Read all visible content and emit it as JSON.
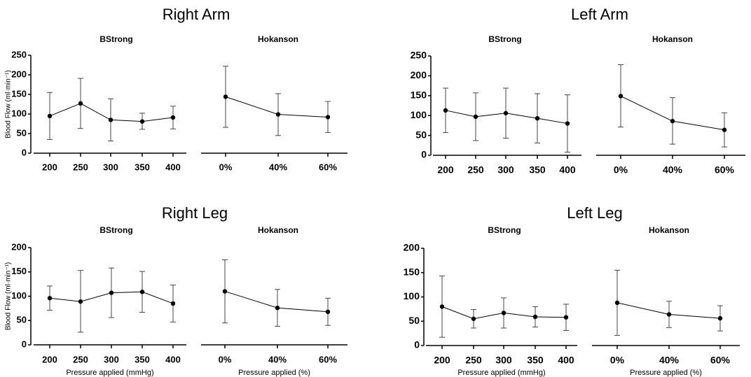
{
  "chart_data": [
    {
      "type": "line",
      "title": "Right Arm",
      "ylabel": "Blood Flow (ml·min⁻¹)",
      "ylim": [
        0,
        250
      ],
      "yticks": [
        0,
        50,
        100,
        150,
        200,
        250
      ],
      "panels": [
        {
          "subtitle": "BStrong",
          "xlabel": "",
          "categories": [
            "200",
            "250",
            "300",
            "350",
            "400"
          ],
          "values": [
            95,
            127,
            85,
            81,
            91
          ],
          "error_low": [
            35,
            63,
            31,
            61,
            62
          ],
          "error_high": [
            155,
            191,
            139,
            102,
            120
          ]
        },
        {
          "subtitle": "Hokanson",
          "xlabel": "",
          "categories": [
            "0%",
            "40%",
            "60%"
          ],
          "values": [
            144,
            99,
            92
          ],
          "error_low": [
            66,
            45,
            53
          ],
          "error_high": [
            222,
            152,
            132
          ]
        }
      ]
    },
    {
      "type": "line",
      "title": "Left Arm",
      "ylabel": "",
      "ylim": [
        0,
        250
      ],
      "yticks": [
        0,
        50,
        100,
        150,
        200,
        250
      ],
      "panels": [
        {
          "subtitle": "BStrong",
          "xlabel": "",
          "categories": [
            "200",
            "250",
            "300",
            "350",
            "400"
          ],
          "values": [
            113,
            97,
            106,
            93,
            80
          ],
          "error_low": [
            57,
            37,
            43,
            31,
            8
          ],
          "error_high": [
            169,
            157,
            169,
            155,
            152
          ]
        },
        {
          "subtitle": "Hokanson",
          "xlabel": "",
          "categories": [
            "0%",
            "40%",
            "60%"
          ],
          "values": [
            149,
            86,
            64
          ],
          "error_low": [
            71,
            28,
            21
          ],
          "error_high": [
            228,
            145,
            107
          ]
        }
      ]
    },
    {
      "type": "line",
      "title": "Right Leg",
      "ylabel": "Blood Flow (ml·min⁻¹)",
      "ylim": [
        0,
        200
      ],
      "yticks": [
        0,
        50,
        100,
        150,
        200
      ],
      "panels": [
        {
          "subtitle": "BStrong",
          "xlabel": "Pressure applied (mmHg)",
          "categories": [
            "200",
            "250",
            "300",
            "350",
            "400"
          ],
          "values": [
            96,
            89,
            107,
            109,
            85
          ],
          "error_low": [
            71,
            26,
            56,
            67,
            47
          ],
          "error_high": [
            121,
            153,
            158,
            151,
            123
          ]
        },
        {
          "subtitle": "Hokanson",
          "xlabel": "Pressure applied (%)",
          "categories": [
            "0%",
            "40%",
            "60%"
          ],
          "values": [
            110,
            76,
            68
          ],
          "error_low": [
            45,
            38,
            40
          ],
          "error_high": [
            175,
            114,
            96
          ]
        }
      ]
    },
    {
      "type": "line",
      "title": "Left Leg",
      "ylabel": "",
      "ylim": [
        0,
        200
      ],
      "yticks": [
        0,
        50,
        100,
        150,
        200
      ],
      "panels": [
        {
          "subtitle": "BStrong",
          "xlabel": "Pressure applied (mmHg)",
          "categories": [
            "200",
            "250",
            "300",
            "350",
            "400"
          ],
          "values": [
            80,
            55,
            67,
            59,
            58
          ],
          "error_low": [
            17,
            36,
            36,
            38,
            31
          ],
          "error_high": [
            143,
            74,
            98,
            80,
            85
          ]
        },
        {
          "subtitle": "Hokanson",
          "xlabel": "Pressure applied (%)",
          "categories": [
            "0%",
            "40%",
            "60%"
          ],
          "values": [
            88,
            64,
            56
          ],
          "error_low": [
            21,
            37,
            30
          ],
          "error_high": [
            155,
            91,
            82
          ]
        }
      ]
    }
  ]
}
